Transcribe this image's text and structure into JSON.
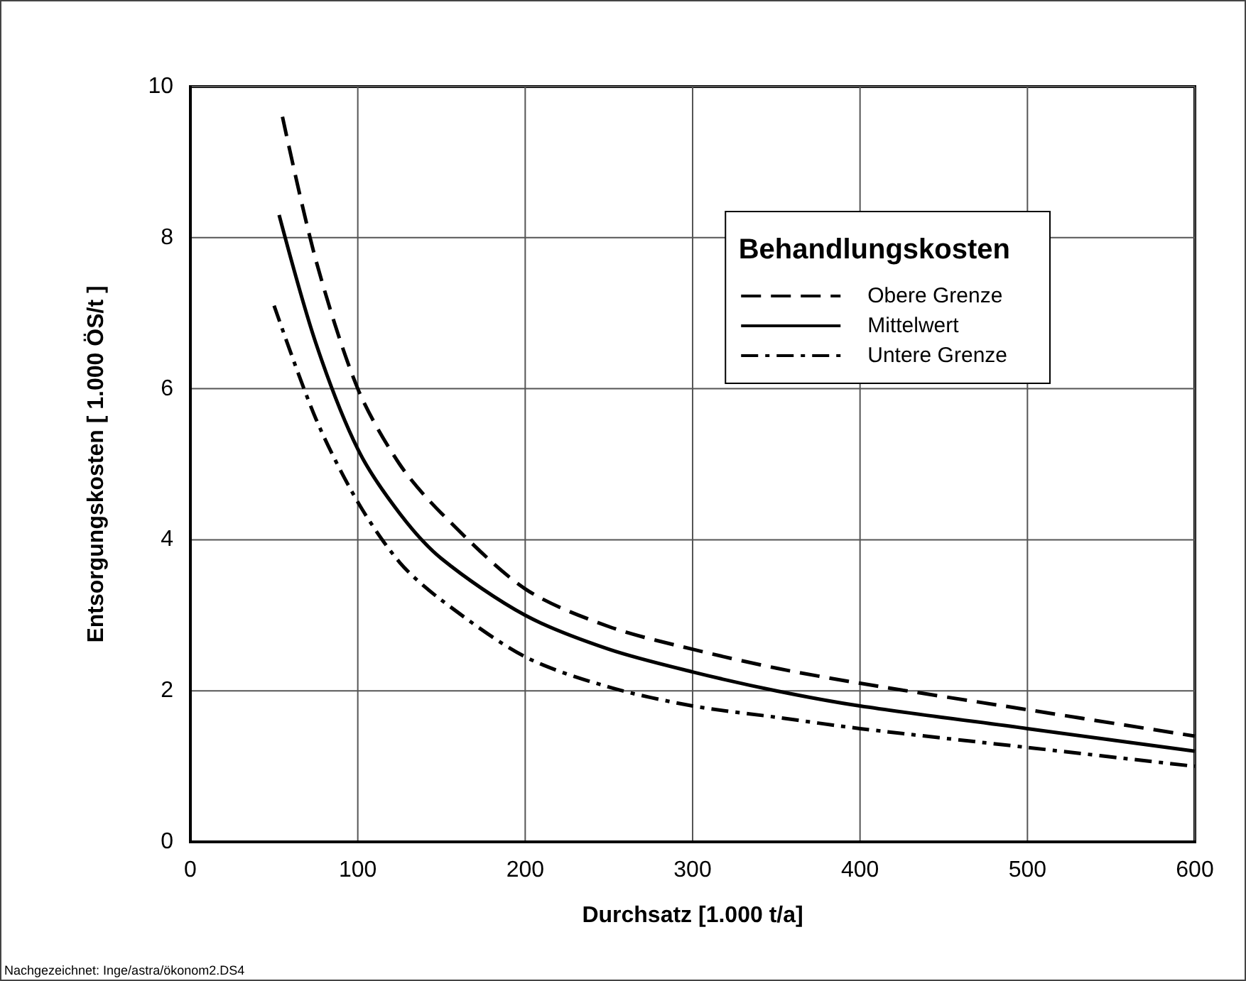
{
  "chart_data": {
    "type": "line",
    "xlabel": "Durchsatz [1.000 t/a]",
    "ylabel": "Entsorgungskosten [ 1.000 ÖS/t ]",
    "legend_title": "Behandlungskosten",
    "annotations": [
      "Nachgezeichnet: Inge/astra/ökonom2.DS4"
    ],
    "xlim": [
      0,
      600
    ],
    "xticks": [
      0,
      100,
      200,
      300,
      400,
      500,
      600
    ],
    "ylim": [
      0,
      10
    ],
    "yticks": [
      0,
      2,
      4,
      6,
      8,
      10
    ],
    "grid": true,
    "legend": "top right",
    "marker": "none",
    "series": [
      {
        "name": "Obere Grenze",
        "color": "#000000",
        "line_style": "dashed",
        "x": [
          55,
          75,
          100,
          125,
          150,
          200,
          250,
          300,
          350,
          400,
          500,
          600
        ],
        "values": [
          9.6,
          7.7,
          6.0,
          5.0,
          4.35,
          3.35,
          2.85,
          2.55,
          2.3,
          2.1,
          1.75,
          1.4
        ]
      },
      {
        "name": "Mittelwert",
        "color": "#000000",
        "line_style": "solid",
        "x": [
          53,
          75,
          100,
          125,
          150,
          200,
          250,
          300,
          350,
          400,
          500,
          600
        ],
        "values": [
          8.3,
          6.6,
          5.2,
          4.35,
          3.75,
          3.0,
          2.55,
          2.25,
          2.0,
          1.8,
          1.5,
          1.2
        ]
      },
      {
        "name": "Untere Grenze",
        "color": "#000000",
        "line_style": "dashdot",
        "x": [
          50,
          75,
          100,
          125,
          150,
          200,
          250,
          300,
          350,
          400,
          500,
          600
        ],
        "values": [
          7.1,
          5.6,
          4.5,
          3.7,
          3.2,
          2.45,
          2.05,
          1.8,
          1.65,
          1.5,
          1.25,
          1.0
        ]
      }
    ]
  }
}
